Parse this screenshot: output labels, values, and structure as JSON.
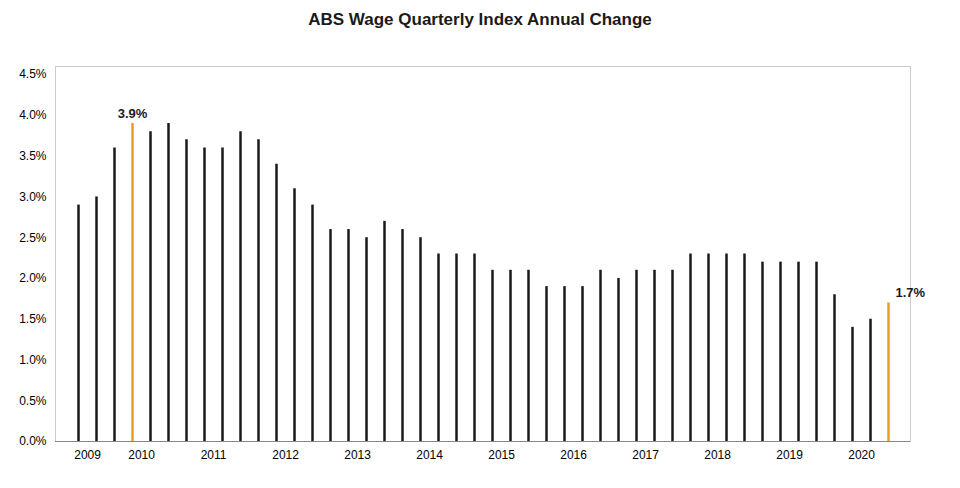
{
  "chart_data": {
    "type": "bar",
    "title": "ABS Wage Quarterly Index Annual Change",
    "categories": [
      "2009",
      null,
      null,
      "2010",
      null,
      null,
      null,
      "2011",
      null,
      null,
      null,
      "2012",
      null,
      null,
      null,
      "2013",
      null,
      null,
      null,
      "2014",
      null,
      null,
      null,
      "2015",
      null,
      null,
      null,
      "2016",
      null,
      null,
      null,
      "2017",
      null,
      null,
      null,
      "2018",
      null,
      null,
      null,
      "2019",
      null,
      null,
      null,
      "2020",
      null,
      null
    ],
    "values": [
      2.9,
      3.0,
      3.6,
      3.9,
      3.8,
      3.9,
      3.7,
      3.6,
      3.6,
      3.8,
      3.7,
      3.4,
      3.1,
      2.9,
      2.6,
      2.6,
      2.5,
      2.7,
      2.6,
      2.5,
      2.3,
      2.3,
      2.3,
      2.1,
      2.1,
      2.1,
      1.9,
      1.9,
      1.9,
      2.1,
      2.0,
      2.1,
      2.1,
      2.1,
      2.3,
      2.3,
      2.3,
      2.3,
      2.2,
      2.2,
      2.2,
      2.2,
      1.8,
      1.4,
      1.5,
      1.7
    ],
    "colors": [
      "#1a1a1a",
      "#1a1a1a",
      "#1a1a1a",
      "#E8A020",
      "#1a1a1a",
      "#1a1a1a",
      "#1a1a1a",
      "#1a1a1a",
      "#1a1a1a",
      "#1a1a1a",
      "#1a1a1a",
      "#1a1a1a",
      "#1a1a1a",
      "#1a1a1a",
      "#1a1a1a",
      "#1a1a1a",
      "#1a1a1a",
      "#1a1a1a",
      "#1a1a1a",
      "#1a1a1a",
      "#1a1a1a",
      "#1a1a1a",
      "#1a1a1a",
      "#1a1a1a",
      "#1a1a1a",
      "#1a1a1a",
      "#1a1a1a",
      "#1a1a1a",
      "#1a1a1a",
      "#1a1a1a",
      "#1a1a1a",
      "#1a1a1a",
      "#1a1a1a",
      "#1a1a1a",
      "#1a1a1a",
      "#1a1a1a",
      "#1a1a1a",
      "#1a1a1a",
      "#1a1a1a",
      "#1a1a1a",
      "#1a1a1a",
      "#1a1a1a",
      "#1a1a1a",
      "#1a1a1a",
      "#1a1a1a",
      "#E8A020"
    ],
    "annotations": [
      {
        "index": 3,
        "text": "3.9%"
      },
      {
        "index": 45,
        "text": "1.7%"
      }
    ],
    "ylim": [
      0,
      4.6
    ],
    "yticks": [
      {
        "value": 0,
        "label": "0.0%"
      },
      {
        "value": 0.5,
        "label": "0.5%"
      },
      {
        "value": 1.0,
        "label": "1.0%"
      },
      {
        "value": 1.5,
        "label": "1.5%"
      },
      {
        "value": 2.0,
        "label": "2.0%"
      },
      {
        "value": 2.5,
        "label": "2.5%"
      },
      {
        "value": 3.0,
        "label": "3.0%"
      },
      {
        "value": 3.5,
        "label": "3.5%"
      },
      {
        "value": 4.0,
        "label": "4.0%"
      },
      {
        "value": 4.5,
        "label": "4.5%"
      }
    ],
    "grid": false
  }
}
